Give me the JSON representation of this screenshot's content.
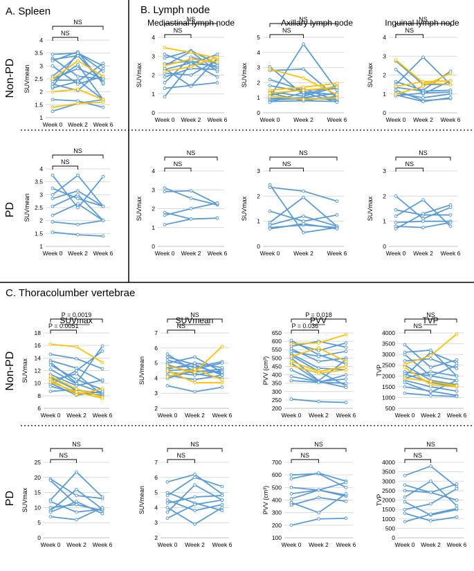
{
  "figure": {
    "section_a": "A.  Spleen",
    "section_b": "B. Lymph node",
    "section_c": "C. Thoracolumber vertebrae",
    "row_labels": [
      "Non-PD",
      "PD",
      "Non-PD",
      "PD"
    ],
    "x_ticks": [
      "Week 0",
      "Week 2",
      "Week 6"
    ],
    "colors": {
      "line": "#5b9bd5",
      "highlight": "#ffc000",
      "grid": "#d9d9d9",
      "axis": "#bfbfbf"
    }
  },
  "chart_data": [
    {
      "id": "spleen_nonpd",
      "type": "line",
      "title": "",
      "ylabel": "SUVmean",
      "ylim": [
        1,
        4
      ],
      "yticks": [
        "1",
        "1.5",
        "2",
        "2.5",
        "3",
        "3.5",
        "4"
      ],
      "brackets": [
        "NS",
        "NS"
      ],
      "series_values": [
        [
          3.45,
          3.5,
          3.0
        ],
        [
          3.3,
          2.6,
          2.5
        ],
        [
          3.25,
          3.4,
          2.4
        ],
        [
          3.2,
          3.55,
          2.3
        ],
        [
          3.0,
          2.3,
          2.6
        ],
        [
          2.6,
          3.4,
          2.35
        ],
        [
          2.5,
          2.9,
          2.5
        ],
        [
          2.45,
          2.45,
          1.7
        ],
        [
          2.4,
          3.05,
          1.7
        ],
        [
          2.3,
          2.05,
          2.9
        ],
        [
          2.15,
          2.4,
          3.1
        ],
        [
          1.7,
          1.65,
          1.4
        ],
        [
          1.25,
          1.55,
          1.7
        ],
        [
          2.2,
          3.5,
          2.8
        ]
      ],
      "highlight_values": [
        [
          2.0,
          2.1,
          1.7
        ],
        [
          2.5,
          3.2,
          2.6
        ],
        [
          1.4,
          1.55,
          1.6
        ]
      ]
    },
    {
      "id": "spleen_pd",
      "type": "line",
      "title": "",
      "ylabel": "SUVmean",
      "ylim": [
        1,
        4
      ],
      "yticks": [
        "1",
        "1.5",
        "2",
        "2.5",
        "3",
        "3.5",
        "4"
      ],
      "brackets": [
        "NS",
        "NS"
      ],
      "series_values": [
        [
          3.75,
          2.5,
          3.7
        ],
        [
          3.25,
          2.85,
          2.55
        ],
        [
          3.0,
          3.75,
          2.55
        ],
        [
          2.85,
          3.15,
          2.55
        ],
        [
          2.55,
          3.0,
          2.0
        ],
        [
          2.2,
          2.65,
          2.0
        ],
        [
          1.95,
          1.85,
          2.0
        ],
        [
          1.55,
          1.45,
          1.4
        ]
      ],
      "highlight_values": []
    },
    {
      "id": "mediastinal_nonpd",
      "type": "line",
      "title": "Mediastinal lymph node",
      "ylabel": "SUVmax",
      "ylim": [
        0,
        4
      ],
      "yticks": [
        "0",
        "1",
        "2",
        "3",
        "4"
      ],
      "brackets": [
        "NS",
        "NS"
      ],
      "series_values": [
        [
          3.1,
          2.6,
          3.1
        ],
        [
          2.9,
          3.3,
          2.6
        ],
        [
          2.6,
          2.75,
          2.4
        ],
        [
          2.5,
          3.25,
          2.2
        ],
        [
          2.3,
          2.65,
          1.9
        ],
        [
          2.1,
          2.0,
          2.8
        ],
        [
          1.9,
          2.35,
          2.3
        ],
        [
          1.6,
          2.95,
          2.6
        ],
        [
          1.3,
          1.45,
          1.6
        ],
        [
          0.85,
          2.6,
          2.5
        ],
        [
          2.35,
          1.4,
          2.9
        ]
      ],
      "highlight_values": [
        [
          3.45,
          3.2,
          2.9
        ],
        [
          2.5,
          2.85,
          2.7
        ],
        [
          2.2,
          2.45,
          2.95
        ]
      ]
    },
    {
      "id": "axillary_nonpd",
      "type": "line",
      "title": "Axillary lymph node",
      "ylabel": "SUVmax",
      "ylim": [
        0,
        5
      ],
      "yticks": [
        "0",
        "1",
        "2",
        "3",
        "4",
        "5"
      ],
      "brackets": [
        "NS",
        "NS"
      ],
      "series_values": [
        [
          3.05,
          1.2,
          1.8
        ],
        [
          2.8,
          2.9,
          1.0
        ],
        [
          2.2,
          1.5,
          1.6
        ],
        [
          1.8,
          1.4,
          1.2
        ],
        [
          1.4,
          1.1,
          1.7
        ],
        [
          1.15,
          1.6,
          0.8
        ],
        [
          1.05,
          4.55,
          1.5
        ],
        [
          0.95,
          1.0,
          1.3
        ],
        [
          0.85,
          0.95,
          0.9
        ],
        [
          0.75,
          0.8,
          0.75
        ],
        [
          0.7,
          1.35,
          0.7
        ],
        [
          1.3,
          0.8,
          1.1
        ]
      ],
      "highlight_values": [
        [
          2.9,
          2.3,
          1.2
        ],
        [
          1.5,
          1.7,
          1.95
        ],
        [
          1.3,
          1.5,
          1.7
        ],
        [
          1.1,
          0.9,
          1.0
        ]
      ]
    },
    {
      "id": "inguinal_nonpd",
      "type": "line",
      "title": "Inguinal lymph node",
      "ylabel": "SUVmax",
      "ylim": [
        0,
        4
      ],
      "yticks": [
        "0",
        "1",
        "2",
        "3",
        "4"
      ],
      "brackets": [
        "NS",
        "NS"
      ],
      "series_values": [
        [
          2.75,
          1.5,
          1.5
        ],
        [
          2.3,
          1.0,
          1.7
        ],
        [
          1.65,
          1.2,
          2.2
        ],
        [
          1.5,
          2.95,
          1.5
        ],
        [
          1.35,
          1.15,
          1.2
        ],
        [
          1.2,
          0.65,
          0.75
        ],
        [
          1.05,
          0.8,
          1.0
        ],
        [
          0.95,
          0.6,
          0.8
        ],
        [
          0.9,
          1.05,
          1.1
        ]
      ],
      "highlight_values": [
        [
          2.8,
          1.6,
          1.5
        ],
        [
          1.4,
          1.65,
          1.7
        ],
        [
          1.0,
          1.4,
          2.1
        ]
      ]
    },
    {
      "id": "mediastinal_pd",
      "type": "line",
      "title": "",
      "ylabel": "SUVmax",
      "ylim": [
        0,
        4
      ],
      "yticks": [
        "0",
        "1",
        "2",
        "3",
        "4"
      ],
      "brackets": [
        "NS",
        "NS"
      ],
      "series_values": [
        [
          3.1,
          2.55,
          2.2
        ],
        [
          2.9,
          2.95,
          2.25
        ],
        [
          1.8,
          1.45,
          1.5
        ],
        [
          1.65,
          2.0,
          2.3
        ],
        [
          1.15,
          1.45,
          1.5
        ]
      ],
      "highlight_values": []
    },
    {
      "id": "axillary_pd",
      "type": "line",
      "title": "",
      "ylabel": "SUVmax",
      "ylim": [
        0,
        3
      ],
      "yticks": [
        "0",
        "1",
        "2",
        "3"
      ],
      "brackets": [
        "NS",
        "NS"
      ],
      "series_values": [
        [
          2.45,
          0.55,
          0.75
        ],
        [
          2.35,
          2.2,
          1.8
        ],
        [
          1.4,
          1.0,
          1.25
        ],
        [
          0.95,
          1.95,
          0.8
        ],
        [
          0.85,
          1.2,
          0.8
        ],
        [
          0.75,
          0.85,
          0.75
        ],
        [
          0.7,
          0.9,
          0.7
        ]
      ],
      "highlight_values": []
    },
    {
      "id": "inguinal_pd",
      "type": "line",
      "title": "",
      "ylabel": "SUVmax",
      "ylim": [
        0,
        3
      ],
      "yticks": [
        "0",
        "1",
        "2",
        "3"
      ],
      "brackets": [
        "NS",
        "NS"
      ],
      "series_values": [
        [
          2.0,
          1.1,
          1.55
        ],
        [
          1.45,
          1.25,
          1.25
        ],
        [
          1.2,
          1.85,
          0.8
        ],
        [
          0.95,
          1.0,
          1.0
        ],
        [
          0.8,
          0.75,
          0.95
        ],
        [
          0.7,
          1.3,
          1.65
        ]
      ],
      "highlight_values": []
    },
    {
      "id": "suvmax_nonpd",
      "type": "line",
      "title": "SUVmax",
      "ylabel": "SUVmax",
      "ylim": [
        6,
        18
      ],
      "yticks": [
        "6",
        "8",
        "10",
        "12",
        "14",
        "16",
        "18"
      ],
      "brackets": [
        "P = 0.0051",
        "P = 0.0019"
      ],
      "series_values": [
        [
          14.6,
          13.9,
          12.3
        ],
        [
          13.6,
          12.4,
          10.3
        ],
        [
          13.3,
          10.0,
          15.9
        ],
        [
          12.9,
          10.6,
          9.0
        ],
        [
          12.2,
          9.9,
          8.5
        ],
        [
          11.4,
          9.6,
          10.5
        ],
        [
          10.9,
          8.9,
          8.4
        ],
        [
          10.4,
          11.5,
          8.1
        ],
        [
          10.0,
          8.1,
          8.7
        ],
        [
          9.8,
          12.0,
          15.1
        ],
        [
          9.5,
          8.5,
          8.1
        ],
        [
          8.7,
          9.0,
          7.9
        ]
      ],
      "highlight_values": [
        [
          16.2,
          15.8,
          13.3
        ],
        [
          11.1,
          9.1,
          7.8
        ],
        [
          10.6,
          8.2,
          9.1
        ],
        [
          10.2,
          8.6,
          7.6
        ]
      ]
    },
    {
      "id": "suvmean_nonpd",
      "type": "line",
      "title": "SUVmean",
      "ylabel": "SUVmean",
      "ylim": [
        2,
        7
      ],
      "yticks": [
        "2",
        "3",
        "4",
        "5",
        "6",
        "7"
      ],
      "brackets": [
        "NS",
        "NS"
      ],
      "series_values": [
        [
          5.6,
          4.4,
          4.6
        ],
        [
          5.4,
          4.9,
          4.2
        ],
        [
          5.2,
          4.7,
          5.1
        ],
        [
          5.0,
          5.4,
          4.4
        ],
        [
          4.9,
          4.3,
          4.0
        ],
        [
          4.7,
          4.8,
          4.3
        ],
        [
          4.5,
          4.6,
          5.0
        ],
        [
          4.4,
          4.2,
          4.5
        ],
        [
          4.2,
          3.9,
          4.2
        ],
        [
          4.0,
          4.5,
          4.4
        ],
        [
          3.5,
          3.1,
          3.4
        ],
        [
          4.6,
          5.0,
          4.7
        ]
      ],
      "highlight_values": [
        [
          4.8,
          4.4,
          6.1
        ],
        [
          4.5,
          3.7,
          3.7
        ],
        [
          4.1,
          4.6,
          3.9
        ]
      ]
    },
    {
      "id": "pvv_nonpd",
      "type": "line",
      "title": "PVV",
      "ylabel": "PVV (cm³)",
      "ylim": [
        200,
        650
      ],
      "yticks": [
        "200",
        "250",
        "300",
        "350",
        "400",
        "450",
        "500",
        "550",
        "600",
        "650"
      ],
      "brackets": [
        "P = 0.036",
        "P = 0.018"
      ],
      "series_values": [
        [
          605,
          520,
          465
        ],
        [
          590,
          545,
          590
        ],
        [
          570,
          600,
          565
        ],
        [
          555,
          480,
          500
        ],
        [
          540,
          510,
          540
        ],
        [
          525,
          440,
          430
        ],
        [
          515,
          420,
          335
        ],
        [
          500,
          365,
          490
        ],
        [
          470,
          360,
          375
        ],
        [
          430,
          355,
          350
        ],
        [
          390,
          360,
          325
        ],
        [
          365,
          355,
          400
        ],
        [
          255,
          240,
          235
        ]
      ],
      "highlight_values": [
        [
          585,
          590,
          640
        ],
        [
          510,
          560,
          480
        ],
        [
          480,
          420,
          450
        ],
        [
          455,
          410,
          430
        ]
      ]
    },
    {
      "id": "tvp_nonpd",
      "type": "line",
      "title": "TVP",
      "ylabel": "TVP",
      "ylim": [
        500,
        4000
      ],
      "yticks": [
        "500",
        "1000",
        "1500",
        "2000",
        "2500",
        "3000",
        "3500",
        "4000"
      ],
      "brackets": [
        "NS",
        "NS"
      ],
      "series_values": [
        [
          3450,
          2400,
          2750
        ],
        [
          3100,
          3200,
          2000
        ],
        [
          3000,
          2000,
          2500
        ],
        [
          2700,
          2800,
          2350
        ],
        [
          2500,
          1800,
          1600
        ],
        [
          2200,
          2000,
          1800
        ],
        [
          2100,
          1700,
          1500
        ],
        [
          1900,
          2200,
          2000
        ],
        [
          1800,
          1500,
          1300
        ],
        [
          1700,
          1250,
          1800
        ],
        [
          1500,
          1300,
          1100
        ],
        [
          1200,
          1100,
          1050
        ],
        [
          2000,
          3100,
          2600
        ]
      ],
      "highlight_values": [
        [
          2550,
          2950,
          3950
        ],
        [
          2400,
          1600,
          1500
        ],
        [
          1900,
          1750,
          1550
        ]
      ]
    },
    {
      "id": "suvmax_pd",
      "type": "line",
      "title": "",
      "ylabel": "SUVmax",
      "ylim": [
        0,
        25
      ],
      "yticks": [
        "0",
        "5",
        "10",
        "15",
        "20",
        "25"
      ],
      "brackets": [
        "NS",
        "NS"
      ],
      "series_values": [
        [
          19.5,
          14.0,
          13.0
        ],
        [
          19.0,
          11.0,
          9.0
        ],
        [
          12.5,
          21.8,
          13.5
        ],
        [
          12.0,
          8.5,
          9.5
        ],
        [
          10.0,
          11.0,
          9.0
        ],
        [
          9.0,
          16.0,
          9.5
        ],
        [
          8.5,
          12.0,
          8.0
        ],
        [
          7.0,
          6.0,
          10.0
        ]
      ],
      "highlight_values": []
    },
    {
      "id": "suvmean_pd",
      "type": "line",
      "title": "",
      "ylabel": "SUVmean",
      "ylim": [
        2,
        7
      ],
      "yticks": [
        "2",
        "3",
        "4",
        "5",
        "6",
        "7"
      ],
      "brackets": [
        "NS",
        "NS"
      ],
      "series_values": [
        [
          5.7,
          6.2,
          4.9
        ],
        [
          5.0,
          4.3,
          3.8
        ],
        [
          4.8,
          6.0,
          5.4
        ],
        [
          4.5,
          3.8,
          4.2
        ],
        [
          4.3,
          4.7,
          4.8
        ],
        [
          4.0,
          2.9,
          4.0
        ],
        [
          3.7,
          5.5,
          4.5
        ],
        [
          3.3,
          4.2,
          4.5
        ]
      ],
      "highlight_values": []
    },
    {
      "id": "pvv_pd",
      "type": "line",
      "title": "",
      "ylabel": "PVV (cm³)",
      "ylim": [
        100,
        700
      ],
      "yticks": [
        "100",
        "200",
        "300",
        "400",
        "500",
        "600",
        "700"
      ],
      "brackets": [
        "NS",
        "NS"
      ],
      "series_values": [
        [
          600,
          610,
          500
        ],
        [
          570,
          615,
          550
        ],
        [
          500,
          480,
          540
        ],
        [
          450,
          480,
          430
        ],
        [
          410,
          480,
          440
        ],
        [
          380,
          300,
          450
        ],
        [
          360,
          420,
          390
        ],
        [
          200,
          250,
          255
        ]
      ],
      "highlight_values": []
    },
    {
      "id": "tvp_pd",
      "type": "line",
      "title": "",
      "ylabel": "TVP",
      "ylim": [
        0,
        4000
      ],
      "yticks": [
        "0",
        "500",
        "1000",
        "1500",
        "2000",
        "2500",
        "3000",
        "3500",
        "4000"
      ],
      "brackets": [
        "NS",
        "NS"
      ],
      "series_values": [
        [
          3300,
          3800,
          2700
        ],
        [
          2800,
          2400,
          2000
        ],
        [
          2500,
          2400,
          2850
        ],
        [
          2150,
          3000,
          1700
        ],
        [
          1900,
          1200,
          1500
        ],
        [
          1500,
          1800,
          2600
        ],
        [
          1300,
          900,
          1100
        ],
        [
          850,
          1250,
          1550
        ]
      ],
      "highlight_values": []
    }
  ]
}
